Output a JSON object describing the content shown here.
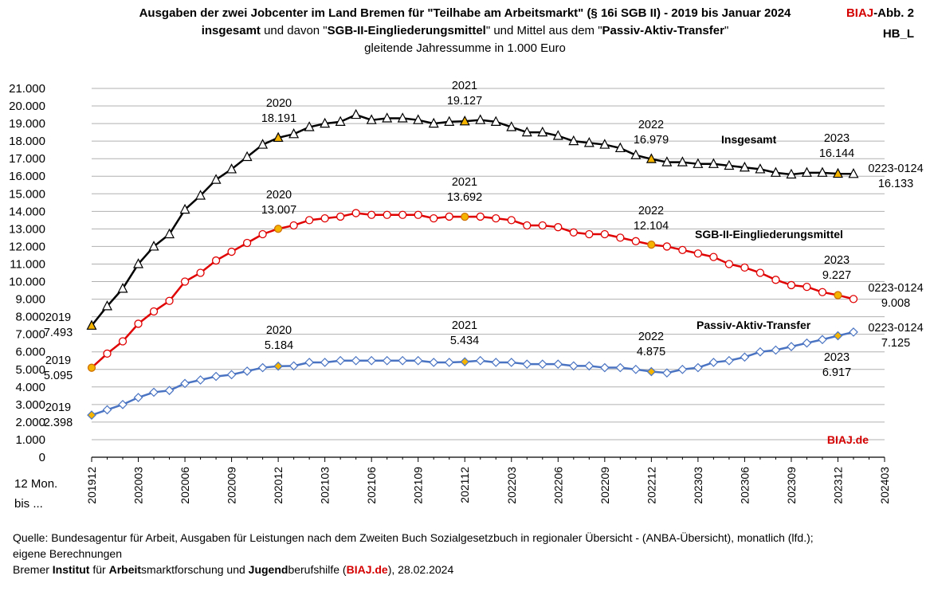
{
  "title": {
    "line1": "Ausgaben der zwei Jobcenter im Land Bremen für \"Teilhabe am Arbeitsmarkt\" (§ 16i SGB II) - 2019 bis Januar 2024",
    "line2_bold1": "insgesamt",
    "line2_mid1": " und davon \"",
    "line2_bold2": "SGB-II-Eingliederungsmittel",
    "line2_mid2": "\" und Mittel aus dem \"",
    "line2_bold3": "Passiv-Aktiv-Transfer",
    "line2_end": "\"",
    "line3": "gleitende  Jahressumme in 1.000 Euro"
  },
  "tag": {
    "biaj": "BIAJ",
    "abb": "-Abb. 2",
    "code": "HB_L"
  },
  "xaxis_caption": {
    "line1": "12 Mon.",
    "line2": "bis ..."
  },
  "watermark": "BIAJ.de",
  "footer": {
    "source_line1": "Quelle: Bundesagentur für Arbeit, Ausgaben für Leistungen nach dem Zweiten Buch Sozialgesetzbuch in regionaler Übersicht - (ANBA-Übersicht), monatlich (lfd.);",
    "source_line2": "eigene Berechnungen",
    "inst_w1": "Bremer ",
    "inst_b1": "Institut",
    "inst_w2": " für ",
    "inst_b2": "Arbeit",
    "inst_w3": "smarktforschung und ",
    "inst_b3": "Jugend",
    "inst_w4": "berufshilfe (",
    "inst_red": "BIAJ.de",
    "inst_w5": "), 28.02.2024"
  },
  "chart_data": {
    "type": "line",
    "ylim": [
      0,
      21000
    ],
    "yticks": [
      0,
      1000,
      2000,
      3000,
      4000,
      5000,
      6000,
      7000,
      8000,
      9000,
      10000,
      11000,
      12000,
      13000,
      14000,
      15000,
      16000,
      17000,
      18000,
      19000,
      20000,
      21000
    ],
    "ytick_labels": [
      "0",
      "1.000",
      "2.000",
      "3.000",
      "4.000",
      "5.000",
      "6.000",
      "7.000",
      "8.000",
      "9.000",
      "10.000",
      "11.000",
      "12.000",
      "13.000",
      "14.000",
      "15.000",
      "16.000",
      "17.000",
      "18.000",
      "19.000",
      "20.000",
      "21.000"
    ],
    "grid": true,
    "x_start": "201912",
    "x_end": "202403",
    "xtick_labels": [
      "201912",
      "202003",
      "202006",
      "202009",
      "202012",
      "202103",
      "202106",
      "202109",
      "202112",
      "202203",
      "202206",
      "202209",
      "202212",
      "202303",
      "202306",
      "202309",
      "202312",
      "202403"
    ],
    "series": [
      {
        "name": "Insgesamt",
        "color": "#000000",
        "marker": "triangle",
        "highlight_color": "#f5b400",
        "values": [
          7493,
          8600,
          9600,
          11000,
          12000,
          12700,
          14100,
          14900,
          15800,
          16400,
          17100,
          17800,
          18191,
          18400,
          18800,
          19000,
          19100,
          19500,
          19200,
          19300,
          19300,
          19200,
          19000,
          19100,
          19127,
          19200,
          19100,
          18800,
          18500,
          18500,
          18300,
          18000,
          17900,
          17800,
          17600,
          17200,
          16979,
          16800,
          16800,
          16700,
          16700,
          16600,
          16500,
          16400,
          16200,
          16100,
          16200,
          16200,
          16144,
          16133
        ]
      },
      {
        "name": "SGB-II-Eingliederungsmittel",
        "color": "#e00000",
        "marker": "circle",
        "highlight_color": "#f5b400",
        "values": [
          5095,
          5900,
          6600,
          7600,
          8300,
          8900,
          10000,
          10500,
          11200,
          11700,
          12200,
          12700,
          13007,
          13200,
          13500,
          13600,
          13700,
          13900,
          13800,
          13800,
          13800,
          13800,
          13600,
          13700,
          13692,
          13700,
          13600,
          13500,
          13200,
          13200,
          13100,
          12800,
          12700,
          12700,
          12500,
          12300,
          12104,
          12000,
          11800,
          11600,
          11400,
          11000,
          10800,
          10500,
          10100,
          9800,
          9700,
          9400,
          9227,
          9008
        ]
      },
      {
        "name": "Passiv-Aktiv-Transfer",
        "color": "#4a74c2",
        "marker": "diamond",
        "highlight_color": "#f5b400",
        "values": [
          2398,
          2700,
          3000,
          3400,
          3700,
          3800,
          4200,
          4400,
          4600,
          4700,
          4900,
          5100,
          5184,
          5200,
          5400,
          5400,
          5500,
          5500,
          5500,
          5500,
          5500,
          5500,
          5400,
          5400,
          5434,
          5500,
          5400,
          5400,
          5300,
          5300,
          5300,
          5200,
          5200,
          5100,
          5100,
          5000,
          4875,
          4800,
          5000,
          5100,
          5400,
          5500,
          5700,
          6000,
          6100,
          6300,
          6500,
          6700,
          6917,
          7125
        ]
      }
    ],
    "highlight_indices": [
      0,
      12,
      24,
      36,
      48
    ],
    "annotations": [
      {
        "series": 0,
        "index": 0,
        "lines": [
          "2019",
          "7.493"
        ]
      },
      {
        "series": 0,
        "index": 12,
        "lines": [
          "2020",
          "18.191"
        ]
      },
      {
        "series": 0,
        "index": 24,
        "lines": [
          "2021",
          "19.127"
        ]
      },
      {
        "series": 0,
        "index": 36,
        "lines": [
          "2022",
          "16.979"
        ]
      },
      {
        "series": 0,
        "index": 48,
        "lines": [
          "2023",
          "16.144"
        ]
      },
      {
        "series": 0,
        "index": 49,
        "lines": [
          "0223-0124",
          "16.133"
        ]
      },
      {
        "series": 1,
        "index": 0,
        "lines": [
          "2019",
          "5.095"
        ]
      },
      {
        "series": 1,
        "index": 12,
        "lines": [
          "2020",
          "13.007"
        ]
      },
      {
        "series": 1,
        "index": 24,
        "lines": [
          "2021",
          "13.692"
        ]
      },
      {
        "series": 1,
        "index": 36,
        "lines": [
          "2022",
          "12.104"
        ]
      },
      {
        "series": 1,
        "index": 48,
        "lines": [
          "2023",
          "9.227"
        ]
      },
      {
        "series": 1,
        "index": 49,
        "lines": [
          "0223-0124",
          "9.008"
        ]
      },
      {
        "series": 2,
        "index": 0,
        "lines": [
          "2019",
          "2.398"
        ]
      },
      {
        "series": 2,
        "index": 12,
        "lines": [
          "2020",
          "5.184"
        ]
      },
      {
        "series": 2,
        "index": 24,
        "lines": [
          "2021",
          "5.434"
        ]
      },
      {
        "series": 2,
        "index": 36,
        "lines": [
          "2022",
          "4.875"
        ]
      },
      {
        "series": 2,
        "index": 48,
        "lines": [
          "2023",
          "6.917"
        ]
      },
      {
        "series": 2,
        "index": 49,
        "lines": [
          "0223-0124",
          "7.125"
        ]
      }
    ]
  }
}
